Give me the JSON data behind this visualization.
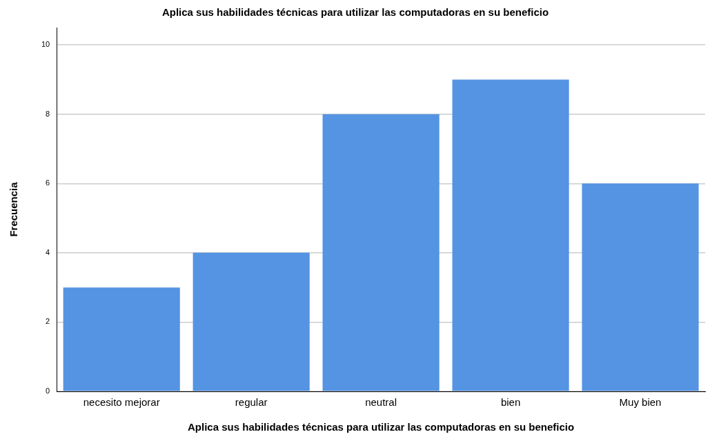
{
  "chart_data": {
    "type": "bar",
    "title": "Aplica sus habilidades técnicas para utilizar las computadoras en su beneficio",
    "xlabel": "Aplica sus habilidades técnicas para utilizar las computadoras en su beneficio",
    "ylabel": "Frecuencia",
    "categories": [
      "necesito mejorar",
      "regular",
      "neutral",
      "bien",
      "Muy bien"
    ],
    "values": [
      3,
      4,
      8,
      9,
      6
    ],
    "color": "#5594e3",
    "ylim": [
      0,
      10.5
    ],
    "yticks": [
      0,
      2,
      4,
      6,
      8,
      10
    ],
    "grid": "y"
  }
}
